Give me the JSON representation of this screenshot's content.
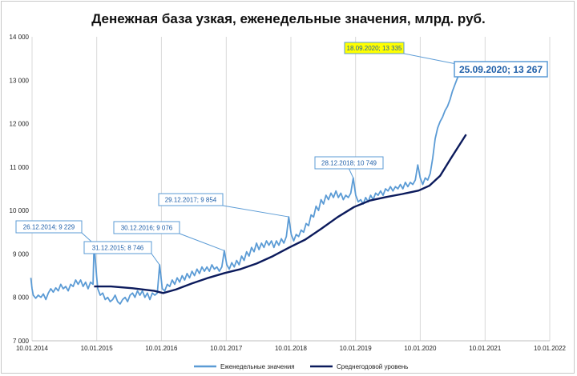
{
  "chart_data": {
    "type": "line",
    "title": "Денежная база узкая, еженедельные значения, млрд. руб.",
    "xlabel": "",
    "ylabel": "",
    "ylim": [
      7000,
      14000
    ],
    "yticks": [
      7000,
      8000,
      9000,
      10000,
      11000,
      12000,
      13000,
      14000
    ],
    "ytick_labels": [
      "7 000",
      "8 000",
      "9 000",
      "10 000",
      "11 000",
      "12 000",
      "13 000",
      "14 000"
    ],
    "xlim": [
      "2014-01-10",
      "2022-01-10"
    ],
    "xticks": [
      "2014-01-10",
      "2015-01-10",
      "2016-01-10",
      "2017-01-10",
      "2018-01-10",
      "2019-01-10",
      "2020-01-10",
      "2021-01-10",
      "2022-01-10"
    ],
    "xtick_labels": [
      "10.01.2014",
      "10.01.2015",
      "10.01.2016",
      "10.01.2017",
      "10.01.2018",
      "10.01.2019",
      "10.01.2020",
      "10.01.2021",
      "10.01.2022"
    ],
    "grid": "vertical",
    "legend_position": "bottom",
    "series": [
      {
        "name": "Еженедельные значения",
        "color": "#5b9bd5",
        "points": [
          [
            "2014-01-03",
            8450
          ],
          [
            "2014-01-10",
            8200
          ],
          [
            "2014-01-17",
            8050
          ],
          [
            "2014-01-31",
            7980
          ],
          [
            "2014-02-14",
            8050
          ],
          [
            "2014-03-01",
            8000
          ],
          [
            "2014-03-15",
            8080
          ],
          [
            "2014-03-29",
            7950
          ],
          [
            "2014-04-12",
            8100
          ],
          [
            "2014-04-26",
            8200
          ],
          [
            "2014-05-10",
            8120
          ],
          [
            "2014-05-24",
            8220
          ],
          [
            "2014-06-07",
            8150
          ],
          [
            "2014-06-21",
            8300
          ],
          [
            "2014-07-05",
            8200
          ],
          [
            "2014-07-19",
            8250
          ],
          [
            "2014-08-02",
            8150
          ],
          [
            "2014-08-16",
            8300
          ],
          [
            "2014-08-30",
            8250
          ],
          [
            "2014-09-13",
            8400
          ],
          [
            "2014-09-27",
            8300
          ],
          [
            "2014-10-11",
            8400
          ],
          [
            "2014-10-25",
            8250
          ],
          [
            "2014-11-08",
            8350
          ],
          [
            "2014-11-22",
            8200
          ],
          [
            "2014-12-06",
            8350
          ],
          [
            "2014-12-20",
            8300
          ],
          [
            "2014-12-26",
            9229
          ],
          [
            "2015-01-09",
            8500
          ],
          [
            "2015-01-16",
            8200
          ],
          [
            "2015-01-30",
            8050
          ],
          [
            "2015-02-13",
            8100
          ],
          [
            "2015-02-27",
            7950
          ],
          [
            "2015-03-13",
            8000
          ],
          [
            "2015-03-27",
            7900
          ],
          [
            "2015-04-10",
            7950
          ],
          [
            "2015-04-24",
            8050
          ],
          [
            "2015-05-08",
            7900
          ],
          [
            "2015-05-22",
            7850
          ],
          [
            "2015-06-05",
            7950
          ],
          [
            "2015-06-19",
            8000
          ],
          [
            "2015-07-03",
            7900
          ],
          [
            "2015-07-17",
            8050
          ],
          [
            "2015-07-31",
            8100
          ],
          [
            "2015-08-14",
            8000
          ],
          [
            "2015-08-28",
            8150
          ],
          [
            "2015-09-11",
            8050
          ],
          [
            "2015-09-25",
            8150
          ],
          [
            "2015-10-09",
            8000
          ],
          [
            "2015-10-23",
            8100
          ],
          [
            "2015-11-06",
            7950
          ],
          [
            "2015-11-20",
            8100
          ],
          [
            "2015-12-04",
            8050
          ],
          [
            "2015-12-18",
            8100
          ],
          [
            "2015-12-31",
            8746
          ],
          [
            "2016-01-15",
            8200
          ],
          [
            "2016-01-29",
            8150
          ],
          [
            "2016-02-12",
            8300
          ],
          [
            "2016-02-26",
            8250
          ],
          [
            "2016-03-11",
            8400
          ],
          [
            "2016-03-25",
            8300
          ],
          [
            "2016-04-08",
            8450
          ],
          [
            "2016-04-22",
            8350
          ],
          [
            "2016-05-06",
            8500
          ],
          [
            "2016-05-20",
            8400
          ],
          [
            "2016-06-03",
            8550
          ],
          [
            "2016-06-17",
            8450
          ],
          [
            "2016-07-01",
            8600
          ],
          [
            "2016-07-15",
            8500
          ],
          [
            "2016-07-29",
            8650
          ],
          [
            "2016-08-12",
            8550
          ],
          [
            "2016-08-26",
            8700
          ],
          [
            "2016-09-09",
            8600
          ],
          [
            "2016-09-23",
            8700
          ],
          [
            "2016-10-07",
            8600
          ],
          [
            "2016-10-21",
            8750
          ],
          [
            "2016-11-04",
            8650
          ],
          [
            "2016-11-18",
            8700
          ],
          [
            "2016-12-02",
            8600
          ],
          [
            "2016-12-16",
            8700
          ],
          [
            "2016-12-30",
            9076
          ],
          [
            "2017-01-13",
            8750
          ],
          [
            "2017-01-27",
            8650
          ],
          [
            "2017-02-10",
            8800
          ],
          [
            "2017-02-24",
            8700
          ],
          [
            "2017-03-10",
            8850
          ],
          [
            "2017-03-24",
            8750
          ],
          [
            "2017-04-07",
            8950
          ],
          [
            "2017-04-21",
            8850
          ],
          [
            "2017-05-05",
            9050
          ],
          [
            "2017-05-19",
            8950
          ],
          [
            "2017-06-02",
            9150
          ],
          [
            "2017-06-16",
            9050
          ],
          [
            "2017-06-30",
            9250
          ],
          [
            "2017-07-14",
            9100
          ],
          [
            "2017-07-28",
            9250
          ],
          [
            "2017-08-11",
            9150
          ],
          [
            "2017-08-25",
            9300
          ],
          [
            "2017-09-08",
            9200
          ],
          [
            "2017-09-22",
            9300
          ],
          [
            "2017-10-06",
            9150
          ],
          [
            "2017-10-20",
            9300
          ],
          [
            "2017-11-03",
            9200
          ],
          [
            "2017-11-17",
            9350
          ],
          [
            "2017-12-01",
            9250
          ],
          [
            "2017-12-15",
            9400
          ],
          [
            "2017-12-29",
            9854
          ],
          [
            "2018-01-12",
            9450
          ],
          [
            "2018-01-26",
            9300
          ],
          [
            "2018-02-09",
            9450
          ],
          [
            "2018-02-23",
            9400
          ],
          [
            "2018-03-09",
            9550
          ],
          [
            "2018-03-23",
            9500
          ],
          [
            "2018-04-06",
            9700
          ],
          [
            "2018-04-20",
            9650
          ],
          [
            "2018-05-04",
            9900
          ],
          [
            "2018-05-18",
            9850
          ],
          [
            "2018-06-01",
            10100
          ],
          [
            "2018-06-15",
            10000
          ],
          [
            "2018-06-29",
            10250
          ],
          [
            "2018-07-13",
            10150
          ],
          [
            "2018-07-27",
            10350
          ],
          [
            "2018-08-10",
            10250
          ],
          [
            "2018-08-24",
            10400
          ],
          [
            "2018-09-07",
            10300
          ],
          [
            "2018-09-21",
            10450
          ],
          [
            "2018-10-05",
            10300
          ],
          [
            "2018-10-19",
            10400
          ],
          [
            "2018-11-02",
            10250
          ],
          [
            "2018-11-16",
            10350
          ],
          [
            "2018-11-30",
            10300
          ],
          [
            "2018-12-14",
            10400
          ],
          [
            "2018-12-28",
            10749
          ],
          [
            "2019-01-11",
            10350
          ],
          [
            "2019-01-25",
            10200
          ],
          [
            "2019-02-08",
            10250
          ],
          [
            "2019-02-22",
            10150
          ],
          [
            "2019-03-08",
            10300
          ],
          [
            "2019-03-22",
            10200
          ],
          [
            "2019-04-05",
            10350
          ],
          [
            "2019-04-19",
            10250
          ],
          [
            "2019-05-03",
            10400
          ],
          [
            "2019-05-17",
            10350
          ],
          [
            "2019-05-31",
            10450
          ],
          [
            "2019-06-14",
            10350
          ],
          [
            "2019-06-28",
            10500
          ],
          [
            "2019-07-12",
            10450
          ],
          [
            "2019-07-26",
            10550
          ],
          [
            "2019-08-09",
            10450
          ],
          [
            "2019-08-23",
            10550
          ],
          [
            "2019-09-06",
            10500
          ],
          [
            "2019-09-20",
            10600
          ],
          [
            "2019-10-04",
            10500
          ],
          [
            "2019-10-18",
            10650
          ],
          [
            "2019-11-01",
            10550
          ],
          [
            "2019-11-15",
            10650
          ],
          [
            "2019-11-29",
            10600
          ],
          [
            "2019-12-13",
            10700
          ],
          [
            "2019-12-27",
            11050
          ],
          [
            "2020-01-10",
            10750
          ],
          [
            "2020-01-24",
            10600
          ],
          [
            "2020-02-07",
            10750
          ],
          [
            "2020-02-21",
            10700
          ],
          [
            "2020-03-06",
            10850
          ],
          [
            "2020-03-20",
            11200
          ],
          [
            "2020-04-03",
            11650
          ],
          [
            "2020-04-17",
            11900
          ],
          [
            "2020-05-01",
            12050
          ],
          [
            "2020-05-15",
            12150
          ],
          [
            "2020-05-29",
            12300
          ],
          [
            "2020-06-12",
            12400
          ],
          [
            "2020-06-26",
            12550
          ],
          [
            "2020-07-10",
            12750
          ],
          [
            "2020-07-24",
            12900
          ],
          [
            "2020-08-07",
            13050
          ],
          [
            "2020-08-21",
            13150
          ],
          [
            "2020-09-04",
            13250
          ],
          [
            "2020-09-11",
            13220
          ],
          [
            "2020-09-18",
            13335
          ],
          [
            "2020-09-25",
            13267
          ]
        ]
      },
      {
        "name": "Среднегодовой уровень",
        "color": "#0b1a5c",
        "points": [
          [
            "2014-12-26",
            8250
          ],
          [
            "2015-04-01",
            8250
          ],
          [
            "2015-08-01",
            8210
          ],
          [
            "2015-12-01",
            8150
          ],
          [
            "2016-01-20",
            8100
          ],
          [
            "2016-04-01",
            8180
          ],
          [
            "2016-07-01",
            8320
          ],
          [
            "2016-10-01",
            8450
          ],
          [
            "2017-01-01",
            8560
          ],
          [
            "2017-04-01",
            8650
          ],
          [
            "2017-07-01",
            8780
          ],
          [
            "2017-10-01",
            8950
          ],
          [
            "2018-01-01",
            9150
          ],
          [
            "2018-04-01",
            9330
          ],
          [
            "2018-07-01",
            9580
          ],
          [
            "2018-10-01",
            9850
          ],
          [
            "2019-01-01",
            10080
          ],
          [
            "2019-04-01",
            10230
          ],
          [
            "2019-07-01",
            10310
          ],
          [
            "2019-10-01",
            10380
          ],
          [
            "2020-01-01",
            10460
          ],
          [
            "2020-03-01",
            10570
          ],
          [
            "2020-05-01",
            10800
          ],
          [
            "2020-07-01",
            11200
          ],
          [
            "2020-09-25",
            11750
          ]
        ]
      }
    ],
    "annotations": [
      {
        "label": "26.12.2014; 9 229",
        "date": "2014-12-26",
        "value": 9229
      },
      {
        "label": "31.12.2015; 8 746",
        "date": "2015-12-31",
        "value": 8746
      },
      {
        "label": "30.12.2016; 9 076",
        "date": "2016-12-30",
        "value": 9076
      },
      {
        "label": "29.12.2017; 9 854",
        "date": "2017-12-29",
        "value": 9854
      },
      {
        "label": "28.12.2018; 10 749",
        "date": "2018-12-28",
        "value": 10749
      },
      {
        "label": "18.09.2020; 13 335",
        "date": "2020-09-18",
        "value": 13335,
        "highlight": "#ffff00"
      },
      {
        "label": "25.09.2020; 13 267",
        "date": "2020-09-25",
        "value": 13267,
        "emphasis": true
      }
    ]
  }
}
